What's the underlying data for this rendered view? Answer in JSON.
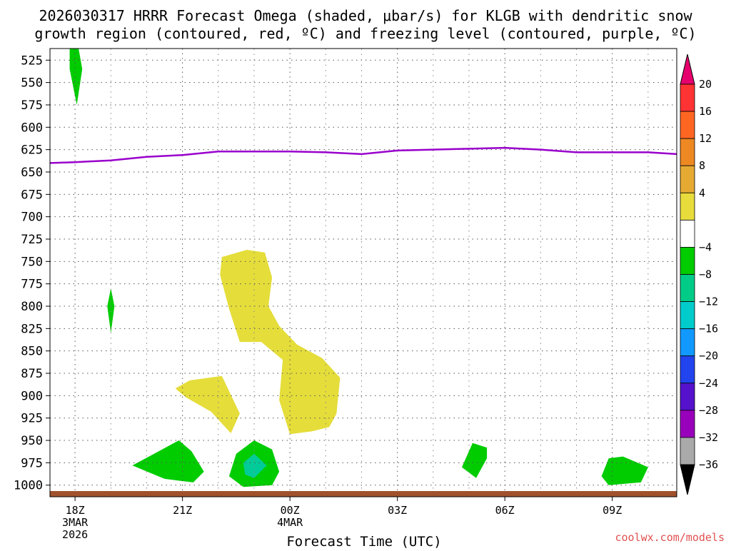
{
  "chart_data": {
    "type": "heatmap",
    "title_line1": "2026030317 HRRR Forecast Omega (shaded, μbar/s) for KLGB with dendritic snow",
    "title_line2": "growth region (contoured, red, ºC) and freezing level (contoured, purple, ºC)",
    "xlabel": "Forecast Time (UTC)",
    "credit": "coolwx.com/models",
    "x_range_hours": [
      -0.7,
      16.8
    ],
    "y_range_hpa": [
      512,
      1013
    ],
    "y_scale": "linear-pressure-inverted",
    "grid": "dotted",
    "y_ticks": [
      525,
      550,
      575,
      600,
      625,
      650,
      675,
      700,
      725,
      750,
      775,
      800,
      825,
      850,
      875,
      900,
      925,
      950,
      975,
      1000
    ],
    "x_ticks": [
      {
        "hour": 0,
        "label": "18Z",
        "sub1": "3MAR",
        "sub2": "2026"
      },
      {
        "hour": 3,
        "label": "21Z",
        "sub1": "",
        "sub2": ""
      },
      {
        "hour": 6,
        "label": "00Z",
        "sub1": "4MAR",
        "sub2": ""
      },
      {
        "hour": 9,
        "label": "03Z",
        "sub1": "",
        "sub2": ""
      },
      {
        "hour": 12,
        "label": "06Z",
        "sub1": "",
        "sub2": ""
      },
      {
        "hour": 15,
        "label": "09Z",
        "sub1": "",
        "sub2": ""
      }
    ],
    "freezing_level": {
      "color": "#9900cc",
      "points": [
        [
          -0.7,
          640
        ],
        [
          0,
          639
        ],
        [
          1,
          637
        ],
        [
          2,
          633
        ],
        [
          3,
          631
        ],
        [
          4,
          627
        ],
        [
          5,
          627
        ],
        [
          6,
          627
        ],
        [
          7,
          628
        ],
        [
          8,
          630
        ],
        [
          9,
          626
        ],
        [
          10,
          625
        ],
        [
          11,
          624
        ],
        [
          12,
          623
        ],
        [
          13,
          625
        ],
        [
          14,
          628
        ],
        [
          15,
          628
        ],
        [
          16,
          628
        ],
        [
          16.8,
          630
        ]
      ]
    },
    "ground": {
      "color": "#a0522d",
      "pressure_hpa": 1013
    },
    "omega_regions": [
      {
        "name": "green",
        "color": "#00cc00",
        "points": [
          [
            -0.15,
            512
          ],
          [
            0.1,
            512
          ],
          [
            0.2,
            535
          ],
          [
            0.05,
            575
          ],
          [
            -0.15,
            535
          ]
        ]
      },
      {
        "name": "green",
        "color": "#00cc00",
        "points": [
          [
            1,
            780
          ],
          [
            1.1,
            800
          ],
          [
            1,
            830
          ],
          [
            0.9,
            800
          ]
        ]
      },
      {
        "name": "green",
        "color": "#00cc00",
        "points": [
          [
            1.6,
            978
          ],
          [
            2.3,
            963
          ],
          [
            2.9,
            950
          ],
          [
            3.25,
            962
          ],
          [
            3.6,
            985
          ],
          [
            3.3,
            997
          ],
          [
            2.5,
            993
          ]
        ]
      },
      {
        "name": "green",
        "color": "#00cc00",
        "points": [
          [
            4.3,
            990
          ],
          [
            4.5,
            965
          ],
          [
            5,
            950
          ],
          [
            5.5,
            960
          ],
          [
            5.7,
            985
          ],
          [
            5.5,
            1000
          ],
          [
            4.7,
            1002
          ]
        ]
      },
      {
        "name": "teal",
        "color": "#00cc99",
        "points": [
          [
            4.7,
            975
          ],
          [
            5,
            965
          ],
          [
            5.35,
            978
          ],
          [
            5,
            992
          ],
          [
            4.75,
            988
          ]
        ]
      },
      {
        "name": "green",
        "color": "#00cc00",
        "points": [
          [
            10.8,
            980
          ],
          [
            11.1,
            953
          ],
          [
            11.5,
            958
          ],
          [
            11.5,
            970
          ],
          [
            11.2,
            992
          ]
        ]
      },
      {
        "name": "green",
        "color": "#00cc00",
        "points": [
          [
            14.7,
            990
          ],
          [
            14.9,
            970
          ],
          [
            15.3,
            968
          ],
          [
            16,
            980
          ],
          [
            15.8,
            997
          ],
          [
            14.9,
            1000
          ]
        ]
      },
      {
        "name": "yellow",
        "color": "#e5dd3a",
        "points": [
          [
            2.8,
            892
          ],
          [
            3.2,
            883
          ],
          [
            4.1,
            878
          ],
          [
            4.6,
            920
          ],
          [
            4.35,
            942
          ],
          [
            3.8,
            918
          ],
          [
            3.1,
            902
          ]
        ]
      },
      {
        "name": "yellow",
        "color": "#e5dd3a",
        "points": [
          [
            4.1,
            745
          ],
          [
            4.8,
            737
          ],
          [
            5.3,
            740
          ],
          [
            5.5,
            768
          ],
          [
            5.4,
            800
          ],
          [
            5.7,
            822
          ],
          [
            6.2,
            843
          ],
          [
            6.9,
            858
          ],
          [
            7.4,
            880
          ],
          [
            7.3,
            920
          ],
          [
            7.1,
            935
          ],
          [
            6.6,
            940
          ],
          [
            6,
            943
          ],
          [
            5.7,
            905
          ],
          [
            5.8,
            860
          ],
          [
            5.2,
            840
          ],
          [
            4.6,
            840
          ],
          [
            4.3,
            803
          ],
          [
            4.05,
            765
          ]
        ]
      }
    ],
    "colorbar": {
      "upper_labels": [
        "20",
        "16",
        "12",
        "8",
        "4"
      ],
      "lower_labels": [
        "−4",
        "−8",
        "−12",
        "−16",
        "−20",
        "−24",
        "−28",
        "−32",
        "−36"
      ],
      "top_arrow_color": "#e6006e",
      "bottom_arrow_color": "#000000",
      "segments": [
        "#ff3333",
        "#ff6622",
        "#ee8822",
        "#e6aa33",
        "#e8dc3c",
        "#ffffff",
        "#00cc00",
        "#00cc88",
        "#00cccc",
        "#1199ff",
        "#2244ee",
        "#5511cc",
        "#9900bb",
        "#aaaaaa"
      ]
    }
  }
}
